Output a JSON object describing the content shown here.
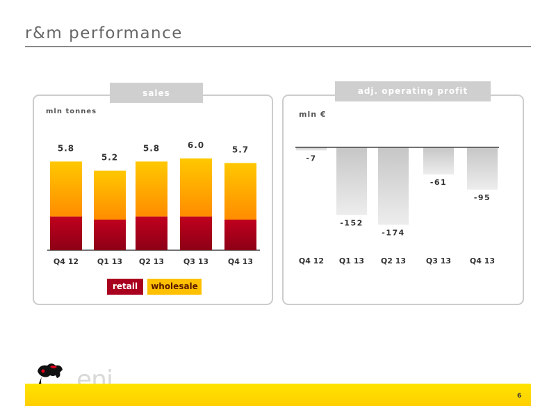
{
  "page": {
    "title": "r&m performance",
    "page_number": "6",
    "logo_text": "eni"
  },
  "sales_panel": {
    "tab_label": "sales",
    "unit_label": "mln tonnes",
    "legend": {
      "retail": "retail",
      "wholesale": "wholesale"
    }
  },
  "profit_panel": {
    "tab_label": "adj. operating profit",
    "unit_label": "mln €"
  },
  "colors": {
    "retail": "#b0001e",
    "wholesale_top": "#ffc800",
    "wholesale_bottom": "#ff8c00",
    "profit_bar": "#d4d4d4",
    "brand_yellow": "#ffd200"
  },
  "chart_data": [
    {
      "type": "bar",
      "stacked": true,
      "categories": [
        "Q4 12",
        "Q1 13",
        "Q2 13",
        "Q3 13",
        "Q4 13"
      ],
      "totals": [
        "5.8",
        "5.2",
        "5.8",
        "6.0",
        "5.7"
      ],
      "series": [
        {
          "name": "retail",
          "values": [
            2.2,
            2.0,
            2.2,
            2.2,
            2.0
          ]
        },
        {
          "name": "wholesale",
          "values": [
            3.6,
            3.2,
            3.6,
            3.8,
            3.7
          ]
        }
      ],
      "ylabel": "mln tonnes",
      "ylim": [
        0,
        6.5
      ],
      "legend_position": "bottom"
    },
    {
      "type": "bar",
      "categories": [
        "Q4 12",
        "Q1 13",
        "Q2 13",
        "Q3 13",
        "Q4 13"
      ],
      "values": [
        -7,
        -152,
        -174,
        -61,
        -95
      ],
      "labels": [
        "-7",
        "-152",
        "-174",
        "-61",
        "-95"
      ],
      "ylabel": "mln €",
      "ylim": [
        -200,
        0
      ]
    }
  ]
}
